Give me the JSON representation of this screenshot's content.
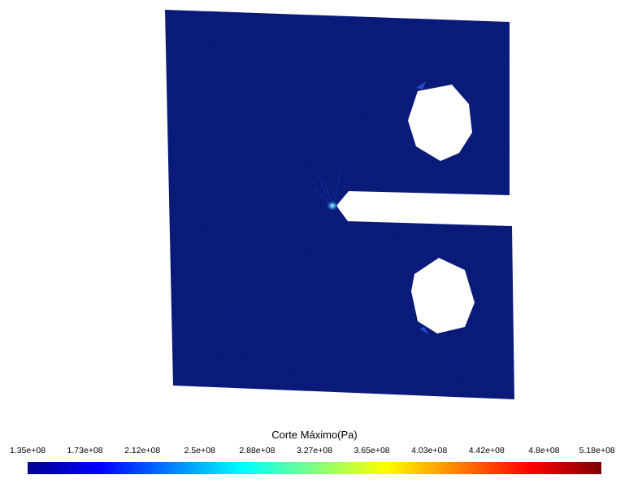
{
  "legend": {
    "title": "Corte Máximo(Pa)",
    "ticks": [
      "1.35e+08",
      "1.73e+08",
      "2.12e+08",
      "2.5e+08",
      "2.88e+08",
      "3.27e+08",
      "3.65e+08",
      "4.03e+08",
      "4.42e+08",
      "4.8e+08",
      "5.18e+08"
    ],
    "colormap": "jet",
    "colors": [
      "#00008f",
      "#0000ff",
      "#0080ff",
      "#00ffff",
      "#80ff80",
      "#ffff00",
      "#ff8000",
      "#ff0000",
      "#800000"
    ]
  },
  "specimen": {
    "fill_color": "#0a1a78",
    "background_color": "#ffffff",
    "hotspot_colors": [
      "#c8ff60",
      "#40a0ff"
    ]
  }
}
